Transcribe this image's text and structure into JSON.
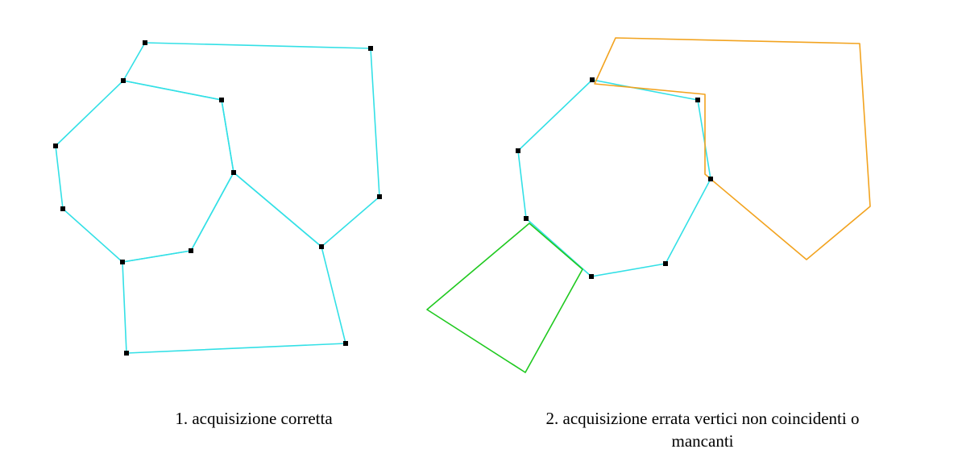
{
  "captions": {
    "left": "1. acquisizione corretta",
    "right_line1": "2.  acquisizione errata vertici non coincidenti o",
    "right_line2": "mancanti"
  },
  "colors": {
    "correct_edges": "#33e0e6",
    "vertex": "#000000",
    "misaligned_polygon": "#f2a31f",
    "missing_vertex_polygon": "#1fc91f"
  }
}
